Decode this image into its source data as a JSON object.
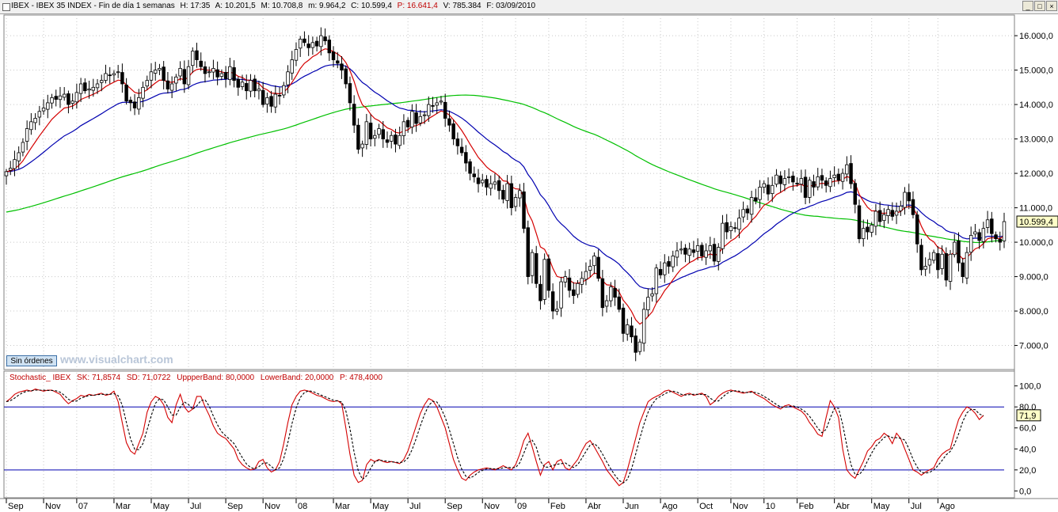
{
  "header": {
    "symbol": "IBEX - IBEX 35 INDEX - Fin de día 1 semanas",
    "h": "H: 17:35",
    "a": "A: 10.201,5",
    "m": "M: 10.708,8",
    "mn": "m: 9.964,2",
    "c": "C: 10.599,4",
    "p": "P: 16.641,4",
    "v": "V: 785.384",
    "f": "F: 03/09/2010"
  },
  "window_buttons": {
    "minimize": "_",
    "maximize": "□",
    "close": "×"
  },
  "order_button": "Sin órdenes",
  "watermark": "www.visualchart.com",
  "last_price_label": "10.599,4",
  "stoch_last_label": "71,9",
  "stochastic_header": {
    "name": "Stochastic_ IBEX",
    "sk": "SK: 71,8574",
    "sd": "SD: 71,0722",
    "upper": "UppperBand: 80,0000",
    "lower": "LowerBand: 20,0000",
    "p": "P: 478,4000"
  },
  "colors": {
    "up_candle": "#ffffff",
    "down_candle": "#000000",
    "ma_short": "#d40000",
    "ma_mid": "#0000b0",
    "ma_long": "#00c000",
    "stoch_k": "#d40000",
    "stoch_d": "#000000",
    "band": "#0000b0"
  },
  "chart_data": [
    {
      "type": "candlestick",
      "ylim": [
        6300,
        16600
      ],
      "y_ticks": [
        "16.000,0",
        "15.000,0",
        "14.000,0",
        "13.000,0",
        "12.000,0",
        "11.000,0",
        "10.000,0",
        "9.000,0",
        "8.000,0",
        "7.000,0"
      ],
      "y_tick_values": [
        16000,
        15000,
        14000,
        13000,
        12000,
        11000,
        10000,
        9000,
        8000,
        7000
      ],
      "x_tick_labels": [
        "Sep",
        "Nov",
        "07",
        "Mar",
        "May",
        "Jul",
        "Sep",
        "Nov",
        "08",
        "Mar",
        "May",
        "Jul",
        "Sep",
        "Nov",
        "09",
        "Feb",
        "Abr",
        "Jun",
        "Ago",
        "Oct",
        "Nov",
        "10",
        "Feb",
        "Abr",
        "May",
        "Jul",
        "Ago"
      ],
      "x_tick_weeks": [
        0,
        9,
        17,
        26,
        35,
        44,
        53,
        62,
        70,
        79,
        88,
        97,
        106,
        115,
        123,
        131,
        140,
        149,
        158,
        167,
        175,
        183,
        191,
        200,
        209,
        218,
        225
      ],
      "closes": [
        12050,
        12150,
        12400,
        12600,
        12900,
        13300,
        13500,
        13600,
        13800,
        13900,
        14050,
        14200,
        14150,
        14250,
        14300,
        14000,
        14100,
        14350,
        14600,
        14400,
        14450,
        14500,
        14600,
        14700,
        14900,
        14850,
        14900,
        14950,
        14600,
        14100,
        14050,
        13900,
        14200,
        14500,
        14700,
        14950,
        15000,
        15050,
        14700,
        14450,
        14600,
        14800,
        15050,
        14600,
        15100,
        15550,
        15300,
        15100,
        14900,
        14950,
        15050,
        14800,
        14900,
        14750,
        15100,
        14700,
        14500,
        14650,
        14400,
        14700,
        14400,
        14450,
        14000,
        14200,
        13950,
        14300,
        14250,
        14550,
        14950,
        15300,
        15600,
        15900,
        15800,
        15650,
        15800,
        15700,
        16000,
        15850,
        15500,
        15300,
        15200,
        15000,
        14600,
        14050,
        13400,
        12700,
        12850,
        13500,
        13000,
        13100,
        13300,
        13000,
        12900,
        13100,
        12850,
        13100,
        13500,
        13350,
        13800,
        13450,
        13650,
        13700,
        14000,
        13950,
        14050,
        14100,
        13600,
        13400,
        13000,
        12800,
        12600,
        12300,
        12000,
        11900,
        11700,
        11800,
        11600,
        11700,
        11750,
        11500,
        11250,
        11700,
        11000,
        11300,
        11500,
        10400,
        9000,
        9700,
        8800,
        8300,
        9500,
        8600,
        8000,
        8050,
        8850,
        9000,
        8600,
        8450,
        8800,
        8950,
        9150,
        9300,
        9600,
        8950,
        8100,
        8300,
        8700,
        8400,
        8050,
        7350,
        7600,
        7250,
        6800,
        7100,
        8050,
        8400,
        8500,
        9250,
        9050,
        9400,
        9300,
        9600,
        9750,
        9800,
        9650,
        9800,
        9700,
        9900,
        9600,
        9750,
        9900,
        9450,
        9850,
        10550,
        10300,
        10450,
        10400,
        10700,
        10950,
        10850,
        11300,
        11200,
        11600,
        11700,
        11400,
        11650,
        11950,
        11700,
        11850,
        11900,
        11750,
        11700,
        11850,
        11300,
        11800,
        11600,
        11900,
        11800,
        11650,
        11850,
        11950,
        11800,
        12000,
        12250,
        11700,
        11100,
        10100,
        10400,
        10300,
        10500,
        10900,
        10600,
        10800,
        10950,
        10750,
        10900,
        11050,
        11450,
        11200,
        10800,
        9950,
        9200,
        9300,
        9500,
        9700,
        9200,
        9650,
        8900,
        9650,
        10000,
        9400,
        9000,
        9700,
        10200,
        10300,
        10050,
        10400,
        10650,
        10250,
        10100,
        10000,
        10599
      ]
    },
    {
      "type": "line",
      "name": "Stochastic_ IBEX",
      "ylim": [
        -5,
        102
      ],
      "y_ticks": [
        "100,0",
        "80,0",
        "60,0",
        "40,0",
        "20,0",
        "0,0"
      ],
      "y_tick_values": [
        100,
        80,
        60,
        40,
        20,
        0
      ],
      "bands": [
        80,
        20
      ],
      "series_k": [
        85,
        88,
        92,
        94,
        95,
        96,
        95,
        97,
        96,
        95,
        96,
        96,
        94,
        92,
        87,
        83,
        86,
        88,
        91,
        90,
        92,
        91,
        92,
        93,
        91,
        92,
        95,
        85,
        65,
        46,
        38,
        35,
        45,
        55,
        75,
        85,
        90,
        88,
        82,
        70,
        65,
        82,
        92,
        80,
        75,
        78,
        90,
        90,
        80,
        72,
        62,
        55,
        52,
        50,
        45,
        40,
        30,
        25,
        22,
        20,
        21,
        28,
        30,
        22,
        18,
        20,
        28,
        45,
        65,
        82,
        90,
        95,
        96,
        95,
        93,
        91,
        90,
        88,
        86,
        85,
        86,
        83,
        60,
        35,
        15,
        8,
        10,
        25,
        30,
        28,
        30,
        28,
        27,
        28,
        27,
        26,
        30,
        38,
        50,
        62,
        74,
        82,
        88,
        86,
        80,
        70,
        60,
        45,
        30,
        20,
        12,
        10,
        15,
        18,
        20,
        21,
        22,
        21,
        20,
        22,
        24,
        22,
        20,
        25,
        35,
        48,
        55,
        42,
        28,
        15,
        25,
        28,
        20,
        28,
        30,
        22,
        20,
        25,
        30,
        38,
        45,
        48,
        42,
        35,
        28,
        20,
        15,
        10,
        5,
        8,
        20,
        35,
        50,
        65,
        75,
        85,
        88,
        90,
        92,
        95,
        96,
        94,
        92,
        90,
        92,
        93,
        91,
        92,
        93,
        90,
        82,
        85,
        90,
        93,
        95,
        96,
        95,
        94,
        93,
        94,
        95,
        92,
        90,
        88,
        85,
        82,
        80,
        78,
        81,
        82,
        80,
        78,
        76,
        72,
        65,
        60,
        54,
        52,
        70,
        86,
        80,
        70,
        40,
        20,
        15,
        12,
        20,
        28,
        38,
        42,
        48,
        50,
        55,
        52,
        45,
        55,
        50,
        40,
        30,
        20,
        18,
        15,
        18,
        20,
        22,
        30,
        35,
        38,
        40,
        55,
        68,
        75,
        80,
        78,
        74,
        68,
        72
      ]
    }
  ]
}
